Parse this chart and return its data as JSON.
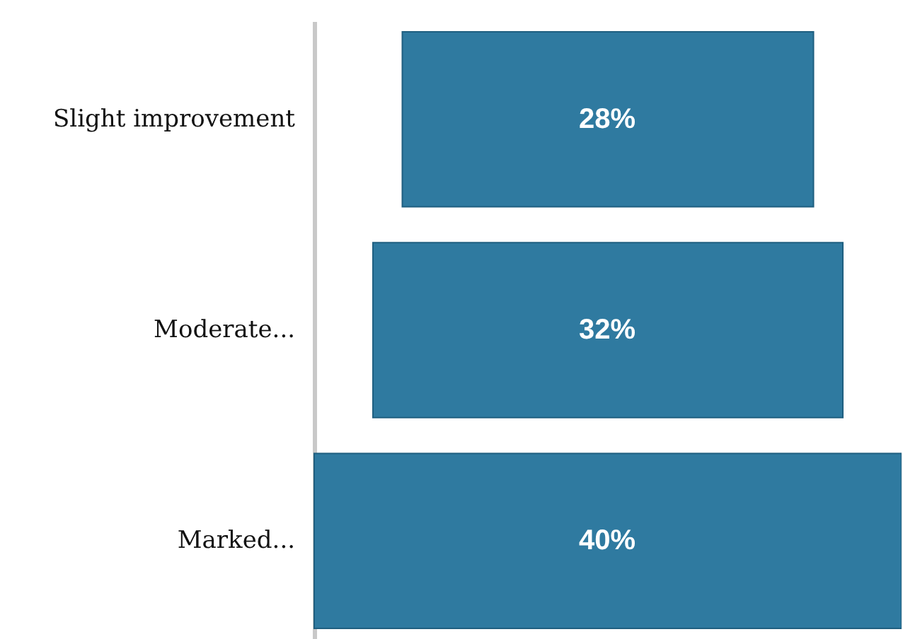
{
  "chart_data": {
    "type": "other",
    "categories": [
      "Slight improvement",
      "Moderate...",
      "Marked..."
    ],
    "values": [
      28,
      32,
      40
    ],
    "value_labels": [
      "28%",
      "32%",
      "40%"
    ],
    "color": "#2f7aa0"
  }
}
